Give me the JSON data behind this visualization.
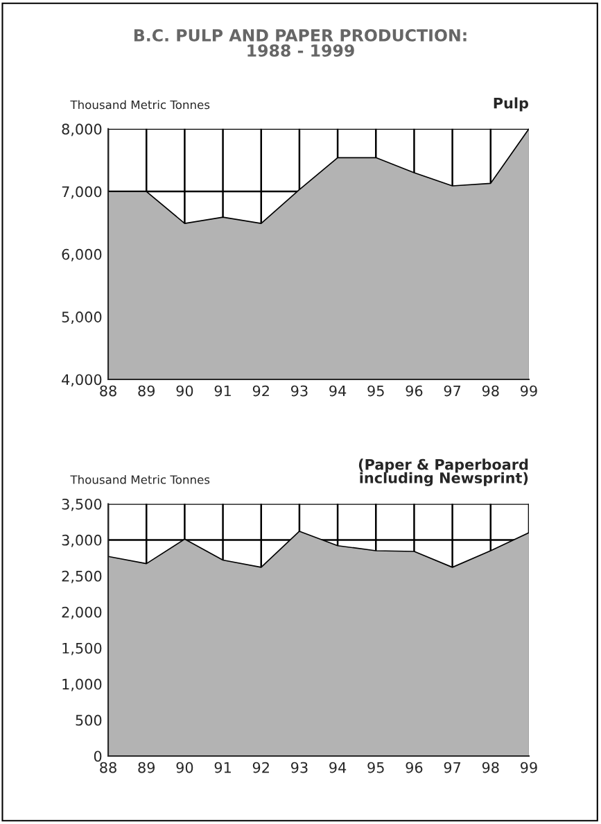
{
  "chart_data": [
    {
      "type": "area",
      "title": "B.C. PULP AND PAPER PRODUCTION:\n1988 - 1999",
      "subtitle": "Pulp",
      "ylabel": "Thousand Metric Tonnes",
      "categories": [
        "88",
        "89",
        "90",
        "91",
        "92",
        "93",
        "94",
        "95",
        "96",
        "97",
        "98",
        "99"
      ],
      "series": [
        {
          "color": "#b3b3b3",
          "values": [
            7000,
            7000,
            6490,
            6590,
            6490,
            7030,
            7540,
            7540,
            7300,
            7090,
            7130,
            8000
          ]
        }
      ],
      "ylim": [
        4000,
        8000
      ],
      "yticks": [
        {
          "value": 4000,
          "label": "4,000"
        },
        {
          "value": 5000,
          "label": "5,000"
        },
        {
          "value": 6000,
          "label": "6,000"
        },
        {
          "value": 7000,
          "label": "7,000"
        },
        {
          "value": 8000,
          "label": "8,000"
        }
      ],
      "grid": true
    },
    {
      "type": "area",
      "subtitle": "(Paper & Paperboard\nincluding Newsprint)",
      "ylabel": "Thousand Metric Tonnes",
      "categories": [
        "88",
        "89",
        "90",
        "91",
        "92",
        "93",
        "94",
        "95",
        "96",
        "97",
        "98",
        "99"
      ],
      "series": [
        {
          "color": "#b3b3b3",
          "values": [
            2770,
            2670,
            3010,
            2720,
            2620,
            3120,
            2920,
            2850,
            2840,
            2620,
            2850,
            3100
          ]
        }
      ],
      "ylim": [
        0,
        3500
      ],
      "yticks": [
        0,
        500,
        {
          "value": 1000,
          "label": "1,000"
        },
        {
          "value": 1500,
          "label": "1,500"
        },
        {
          "value": 2000,
          "label": "2,000"
        },
        {
          "value": 2500,
          "label": "2,500"
        },
        {
          "value": 3000,
          "label": "3,000"
        },
        {
          "value": 3500,
          "label": "3,500"
        }
      ],
      "grid": true
    }
  ]
}
